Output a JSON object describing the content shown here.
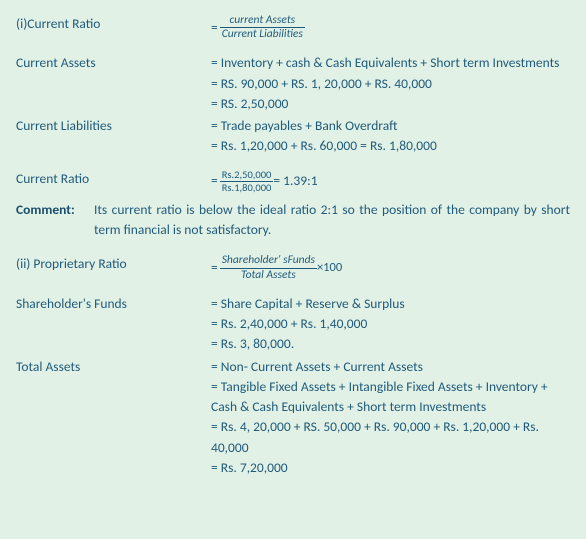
{
  "section1": {
    "title": "(i)Current Ratio",
    "formula": {
      "num": "current Assets",
      "den": "Current Liabilities"
    },
    "currentAssets": {
      "label": "Current Assets",
      "line1": "= Inventory + cash & Cash Equivalents + Short term Investments",
      "line2": "= RS. 90,000 + RS. 1, 20,000 + RS. 40,000",
      "line3": "= RS. 2,50,000"
    },
    "currentLiab": {
      "label": "Current Liabilities",
      "line1": "= Trade payables + Bank Overdraft",
      "line2": "= Rs. 1,20,000 + Rs. 60,000 = Rs. 1,80,000"
    },
    "ratioCalc": {
      "label": "Current Ratio",
      "num": "Rs.2,50,000",
      "den": "Rs.1,80,000",
      "result": "= 1.39:1"
    },
    "comment": {
      "label": "Comment:",
      "text": "Its current ratio is below the ideal ratio 2:1 so the position of the company by short term financial is not satisfactory."
    }
  },
  "section2": {
    "title": "(ii) Proprietary Ratio",
    "formula": {
      "num": "Shareholder' sFunds",
      "den": "Total Assets",
      "suffix": "×100"
    },
    "shFunds": {
      "label": "Shareholder's Funds",
      "line1": "= Share Capital + Reserve & Surplus",
      "line2": "= Rs. 2,40,000 + Rs. 1,40,000",
      "line3": "= Rs. 3, 80,000."
    },
    "totalAssets": {
      "label": "Total Assets",
      "line1": "= Non- Current Assets + Current Assets",
      "line2": "= Tangible Fixed Assets + Intangible Fixed Assets + Inventory + Cash & Cash Equivalents + Short term Investments",
      "line3": "= Rs. 4, 20,000 + RS. 50,000 + Rs. 90,000 + Rs. 1,20,000 + Rs. 40,000",
      "line4": "= Rs. 7,20,000"
    }
  }
}
